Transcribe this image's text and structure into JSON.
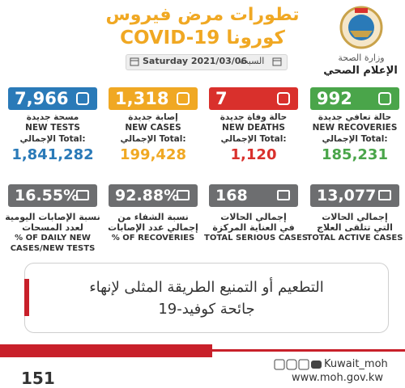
{
  "header": {
    "title_line1": "تطورات مرض فيروس",
    "title_line2": "كورونا COVID-19",
    "ministry": "وزارة الصحة",
    "department": "الإعلام الصحي"
  },
  "date": {
    "date_en": "Saturday 2021/03/06",
    "day_ar": "السبت"
  },
  "cards": [
    {
      "value": "7,966",
      "label_ar": "مسحة جديدة",
      "label_en": "NEW TESTS",
      "total_label": "الإجمالي Total:",
      "total": "1,841,282"
    },
    {
      "value": "1,318",
      "label_ar": "إصابة جديدة",
      "label_en": "NEW CASES",
      "total_label": "الإجمالي Total:",
      "total": "199,428"
    },
    {
      "value": "7",
      "label_ar": "حالة وفاة جديدة",
      "label_en": "NEW DEATHS",
      "total_label": "الإجمالي Total:",
      "total": "1,120"
    },
    {
      "value": "992",
      "label_ar": "حالة تعافي جديدة",
      "label_en": "NEW RECOVERIES",
      "total_label": "الإجمالي Total:",
      "total": "185,231"
    }
  ],
  "stats": [
    {
      "value": "16.55%",
      "lines": [
        "نسبة الإصابات اليومية",
        "لعدد المسحات",
        "% OF DAILY NEW",
        "CASES/NEW TESTS"
      ]
    },
    {
      "value": "92.88%",
      "lines": [
        "نسبة الشفاء من",
        "إجمالي عدد الإصابات",
        "% OF RECOVERIES"
      ]
    },
    {
      "value": "168",
      "lines": [
        "إجمالي الحالات",
        "في العناية المركزة",
        "TOTAL SERIOUS CASES"
      ]
    },
    {
      "value": "13,077",
      "lines": [
        "إجمالي الحالات",
        "التي تتلقى العلاج",
        "TOTAL ACTIVE CASES"
      ]
    }
  ],
  "message": {
    "line1": "التطعيم أو التمنيع الطريقة المثلى لإنهاء",
    "line2": "جائحة كوفيد-19"
  },
  "footer": {
    "handle": "Kuwait_moh",
    "website": "www.moh.gov.kw",
    "hotline": "151"
  }
}
